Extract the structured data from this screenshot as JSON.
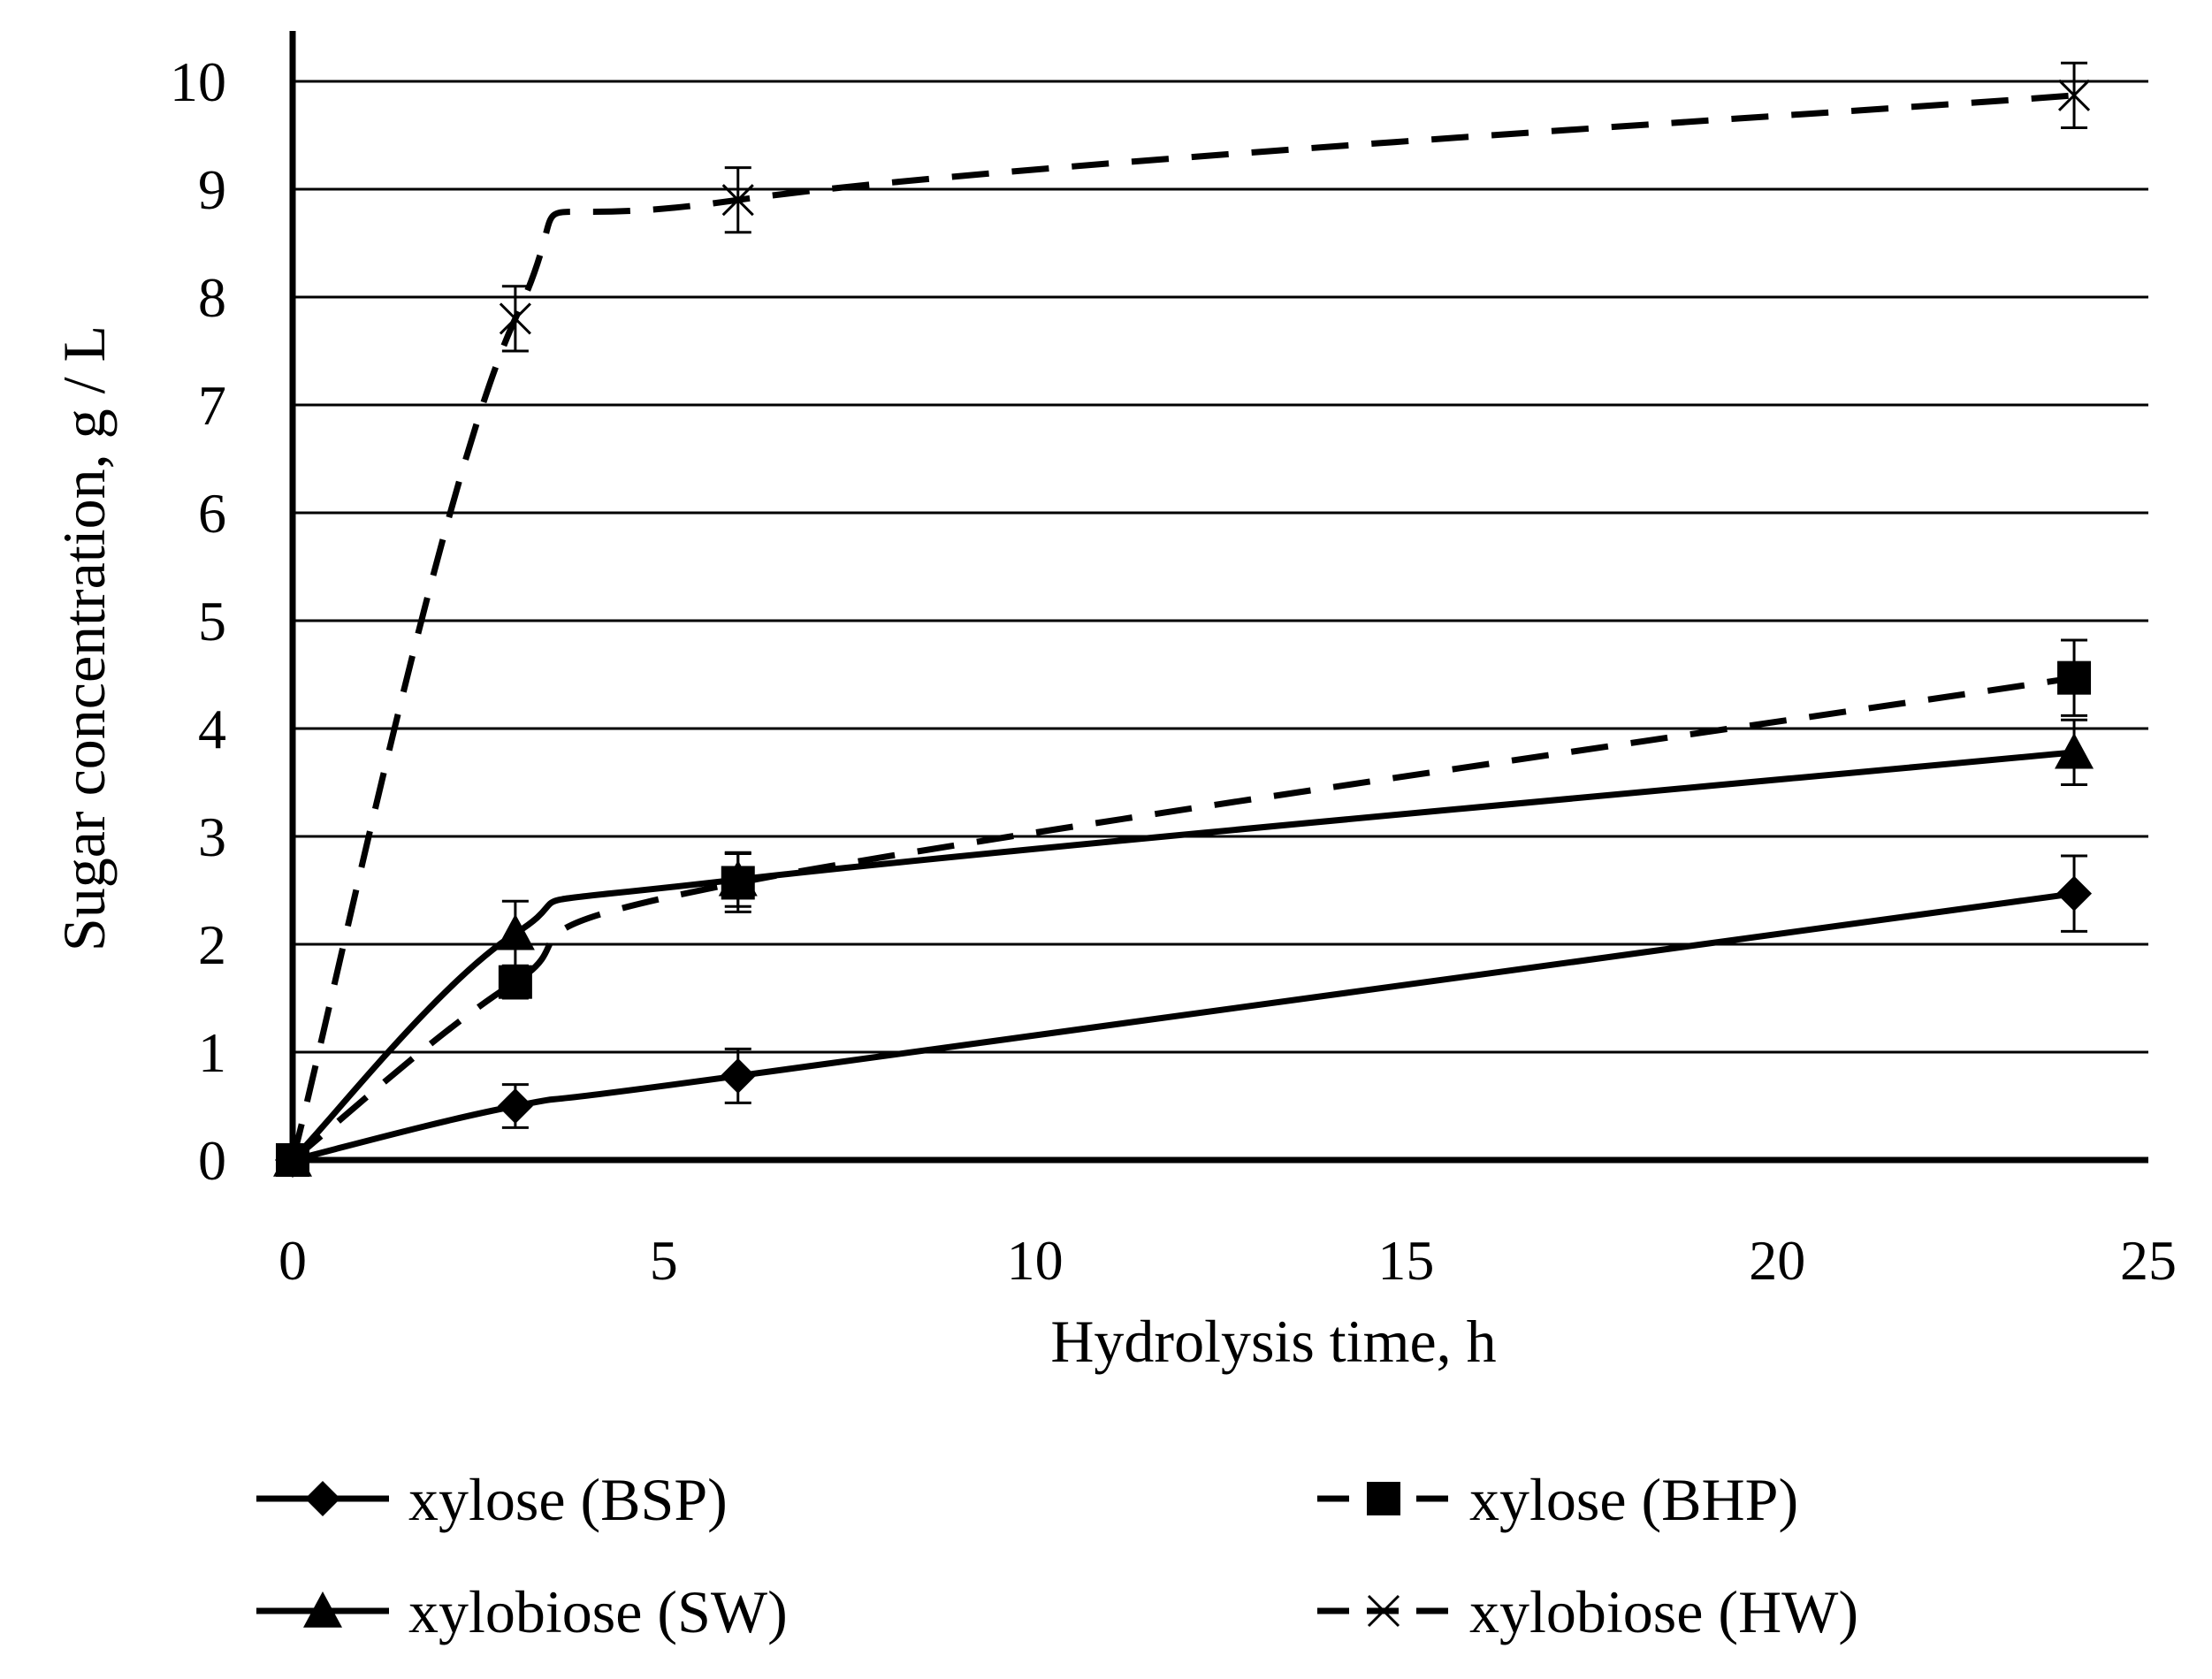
{
  "chart_data": {
    "type": "line",
    "title": "",
    "xlabel": "Hydrolysis time, h",
    "ylabel": "Sugar  concentration, g / L",
    "xlim": [
      0,
      25
    ],
    "ylim": [
      0,
      10
    ],
    "x_ticks": [
      0,
      5,
      10,
      15,
      20,
      25
    ],
    "y_ticks": [
      0,
      1,
      2,
      3,
      4,
      5,
      6,
      7,
      8,
      9,
      10
    ],
    "grid": "horizontal",
    "legend_position": "bottom",
    "series": [
      {
        "name": "xylose (BSP)",
        "marker": "diamond",
        "line": "solid",
        "x": [
          0,
          3,
          6,
          24
        ],
        "y": [
          0,
          0.5,
          0.78,
          2.47
        ],
        "error": [
          0,
          0.2,
          0.25,
          0.35
        ]
      },
      {
        "name": "xylose (BHP)",
        "marker": "square",
        "line": "dashed",
        "x": [
          0,
          3,
          6,
          24
        ],
        "y": [
          0,
          1.65,
          2.57,
          4.47
        ],
        "error": [
          0,
          0.15,
          0.27,
          0.35
        ]
      },
      {
        "name": "xylobiose (SW)",
        "marker": "triangle",
        "line": "solid",
        "x": [
          0,
          3,
          6,
          24
        ],
        "y": [
          0,
          2.1,
          2.6,
          3.78
        ],
        "error": [
          0,
          0.3,
          0.25,
          0.3
        ]
      },
      {
        "name": "xylobiose (HW)",
        "marker": "x",
        "line": "dashed",
        "x": [
          0,
          3,
          6,
          24
        ],
        "y": [
          0,
          7.8,
          8.9,
          9.87
        ],
        "error": [
          0,
          0.3,
          0.3,
          0.3
        ]
      }
    ]
  }
}
